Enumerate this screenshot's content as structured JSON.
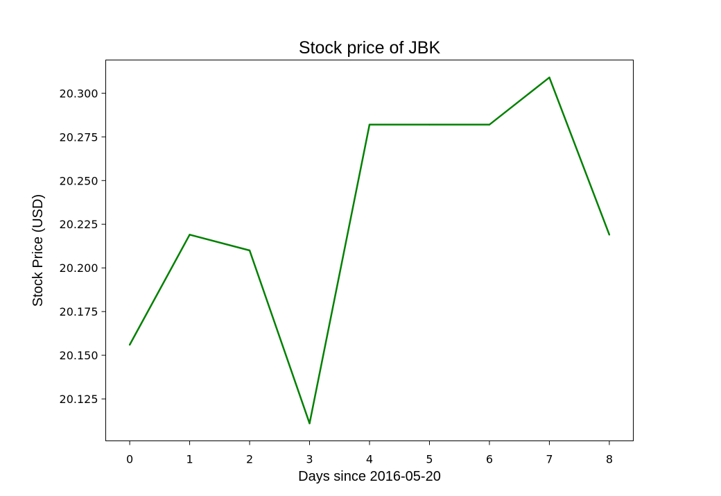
{
  "chart_data": {
    "type": "line",
    "title": "Stock price of JBK",
    "xlabel": "Days since 2016-05-20",
    "ylabel": "Stock Price (USD)",
    "x": [
      0,
      1,
      2,
      3,
      4,
      5,
      6,
      7,
      8
    ],
    "series": [
      {
        "color": "#008000",
        "values": [
          20.156,
          20.219,
          20.21,
          20.111,
          20.282,
          20.282,
          20.282,
          20.309,
          20.219
        ]
      }
    ],
    "xticks": [
      0,
      1,
      2,
      3,
      4,
      5,
      6,
      7,
      8
    ],
    "xtick_labels": [
      "0",
      "1",
      "2",
      "3",
      "4",
      "5",
      "6",
      "7",
      "8"
    ],
    "yticks": [
      20.125,
      20.15,
      20.175,
      20.2,
      20.225,
      20.25,
      20.275,
      20.3
    ],
    "ytick_labels": [
      "20.125",
      "20.150",
      "20.175",
      "20.200",
      "20.225",
      "20.250",
      "20.275",
      "20.300"
    ],
    "xlim": [
      -0.4,
      8.4
    ],
    "ylim": [
      20.101,
      20.319
    ],
    "grid": false,
    "legend": "none"
  }
}
